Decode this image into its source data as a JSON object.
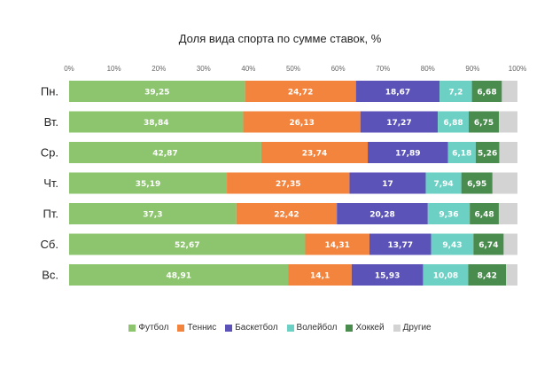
{
  "chart_data": {
    "type": "bar",
    "orientation": "horizontal",
    "stacked": true,
    "title": "Доля вида спорта по сумме ставок, %",
    "categories": [
      "Пн.",
      "Вт.",
      "Ср.",
      "Чт.",
      "Пт.",
      "Сб.",
      "Вс."
    ],
    "xlim": [
      0,
      100
    ],
    "x_ticks": [
      "0%",
      "10%",
      "20%",
      "30%",
      "40%",
      "50%",
      "60%",
      "70%",
      "80%",
      "90%",
      "100%"
    ],
    "grid": false,
    "legend_position": "bottom",
    "series": [
      {
        "name": "Футбол",
        "color": "#8dc56f",
        "values": [
          39.25,
          38.84,
          42.87,
          35.19,
          37.3,
          52.67,
          48.91
        ],
        "labels": [
          "39,25",
          "38,84",
          "42,87",
          "35,19",
          "37,3",
          "52,67",
          "48,91"
        ]
      },
      {
        "name": "Теннис",
        "color": "#f3843e",
        "values": [
          24.72,
          26.13,
          23.74,
          27.35,
          22.42,
          14.31,
          14.1
        ],
        "labels": [
          "24,72",
          "26,13",
          "23,74",
          "27,35",
          "22,42",
          "14,31",
          "14,1"
        ]
      },
      {
        "name": "Баскетбол",
        "color": "#5b53b8",
        "values": [
          18.67,
          17.27,
          17.89,
          17,
          20.28,
          13.77,
          15.93
        ],
        "labels": [
          "18,67",
          "17,27",
          "17,89",
          "17",
          "20,28",
          "13,77",
          "15,93"
        ]
      },
      {
        "name": "Волейбол",
        "color": "#6cd1c4",
        "values": [
          7.2,
          6.88,
          6.18,
          7.94,
          9.36,
          9.43,
          10.08
        ],
        "labels": [
          "7,2",
          "6,88",
          "6,18",
          "7,94",
          "9,36",
          "9,43",
          "10,08"
        ]
      },
      {
        "name": "Хоккей",
        "color": "#4a8b4e",
        "values": [
          6.68,
          6.75,
          5.26,
          6.95,
          6.48,
          6.74,
          8.42
        ],
        "labels": [
          "6,68",
          "6,75",
          "5,26",
          "6,95",
          "6,48",
          "6,74",
          "8,42"
        ]
      },
      {
        "name": "Другие",
        "color": "#d3d3d3",
        "values": [
          3.48,
          4.13,
          4.06,
          5.57,
          4.16,
          3.08,
          2.56
        ],
        "labels": [
          "",
          "",
          "",
          "",
          "",
          "",
          ""
        ]
      }
    ]
  }
}
